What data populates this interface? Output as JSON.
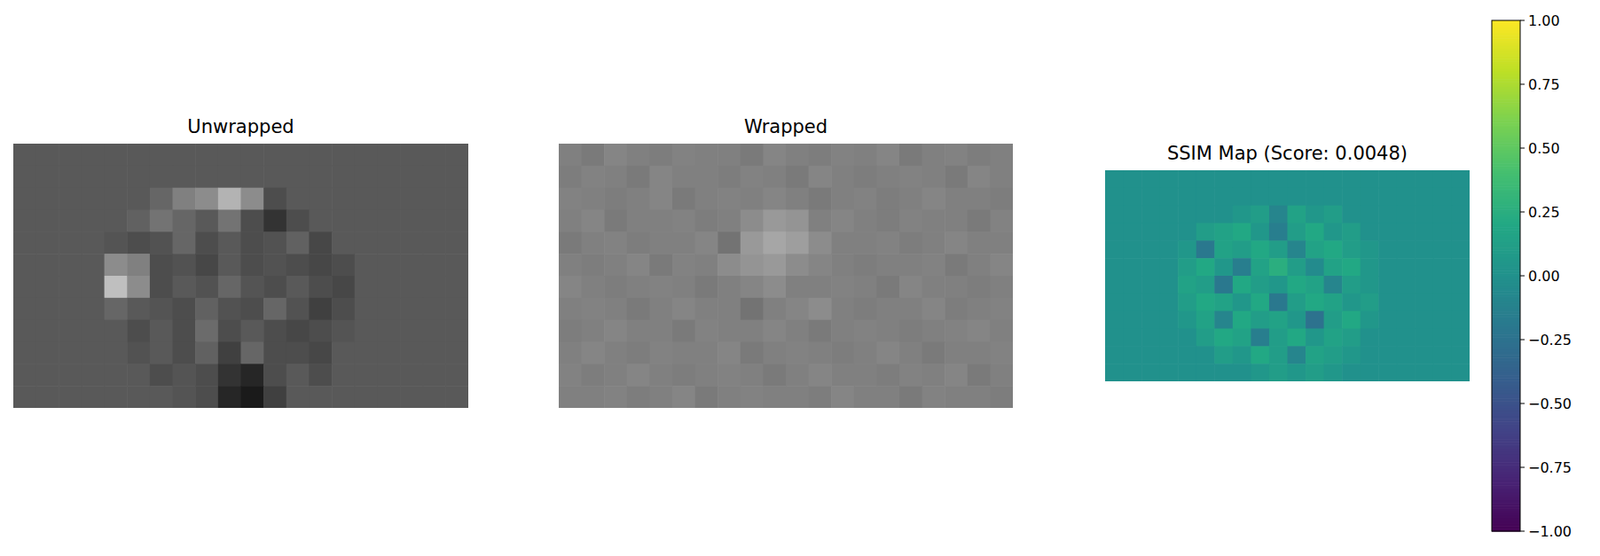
{
  "chart_data": [
    {
      "type": "heatmap",
      "title": "Unwrapped",
      "color": "gray",
      "tick_labels": false,
      "zlim": [
        0,
        1
      ],
      "cells": [
        [
          0.35,
          0.35,
          0.35,
          0.35,
          0.35,
          0.35,
          0.35,
          0.35,
          0.35,
          0.35,
          0.35,
          0.35,
          0.35,
          0.35,
          0.35,
          0.35,
          0.35,
          0.35,
          0.35,
          0.35
        ],
        [
          0.35,
          0.35,
          0.35,
          0.35,
          0.35,
          0.35,
          0.35,
          0.35,
          0.35,
          0.35,
          0.35,
          0.35,
          0.35,
          0.35,
          0.35,
          0.35,
          0.35,
          0.35,
          0.35,
          0.35
        ],
        [
          0.35,
          0.35,
          0.35,
          0.35,
          0.35,
          0.35,
          0.4,
          0.5,
          0.55,
          0.7,
          0.55,
          0.3,
          0.35,
          0.35,
          0.35,
          0.35,
          0.35,
          0.35,
          0.35,
          0.35
        ],
        [
          0.35,
          0.35,
          0.35,
          0.35,
          0.35,
          0.38,
          0.45,
          0.4,
          0.35,
          0.45,
          0.3,
          0.2,
          0.3,
          0.35,
          0.35,
          0.35,
          0.35,
          0.35,
          0.35,
          0.35
        ],
        [
          0.35,
          0.35,
          0.35,
          0.35,
          0.33,
          0.3,
          0.32,
          0.4,
          0.3,
          0.35,
          0.3,
          0.32,
          0.38,
          0.28,
          0.35,
          0.35,
          0.35,
          0.35,
          0.35,
          0.35
        ],
        [
          0.35,
          0.35,
          0.35,
          0.35,
          0.55,
          0.5,
          0.3,
          0.32,
          0.28,
          0.35,
          0.3,
          0.32,
          0.3,
          0.28,
          0.3,
          0.35,
          0.35,
          0.35,
          0.35,
          0.35
        ],
        [
          0.35,
          0.35,
          0.35,
          0.35,
          0.75,
          0.55,
          0.3,
          0.35,
          0.32,
          0.4,
          0.33,
          0.3,
          0.35,
          0.3,
          0.28,
          0.35,
          0.35,
          0.35,
          0.35,
          0.35
        ],
        [
          0.35,
          0.35,
          0.35,
          0.35,
          0.4,
          0.35,
          0.33,
          0.3,
          0.38,
          0.32,
          0.3,
          0.4,
          0.32,
          0.25,
          0.3,
          0.35,
          0.35,
          0.35,
          0.35,
          0.35
        ],
        [
          0.35,
          0.35,
          0.35,
          0.35,
          0.35,
          0.3,
          0.35,
          0.3,
          0.42,
          0.3,
          0.35,
          0.3,
          0.28,
          0.3,
          0.33,
          0.35,
          0.35,
          0.35,
          0.35,
          0.35
        ],
        [
          0.35,
          0.35,
          0.35,
          0.35,
          0.35,
          0.32,
          0.35,
          0.3,
          0.38,
          0.25,
          0.4,
          0.3,
          0.3,
          0.28,
          0.35,
          0.35,
          0.35,
          0.35,
          0.35,
          0.35
        ],
        [
          0.35,
          0.35,
          0.35,
          0.35,
          0.35,
          0.35,
          0.3,
          0.33,
          0.3,
          0.2,
          0.15,
          0.3,
          0.35,
          0.3,
          0.35,
          0.35,
          0.35,
          0.35,
          0.35,
          0.35
        ],
        [
          0.35,
          0.35,
          0.35,
          0.35,
          0.35,
          0.35,
          0.35,
          0.33,
          0.3,
          0.15,
          0.1,
          0.25,
          0.35,
          0.35,
          0.35,
          0.35,
          0.35,
          0.35,
          0.35,
          0.35
        ]
      ]
    },
    {
      "type": "heatmap",
      "title": "Wrapped",
      "color": "gray",
      "tick_labels": false,
      "zlim": [
        0,
        1
      ],
      "cells": [
        [
          0.5,
          0.48,
          0.52,
          0.5,
          0.49,
          0.51,
          0.5,
          0.5,
          0.48,
          0.52,
          0.5,
          0.49,
          0.51,
          0.5,
          0.52,
          0.48,
          0.5,
          0.51,
          0.49,
          0.5
        ],
        [
          0.49,
          0.51,
          0.5,
          0.48,
          0.52,
          0.5,
          0.5,
          0.49,
          0.51,
          0.5,
          0.48,
          0.52,
          0.5,
          0.49,
          0.5,
          0.51,
          0.5,
          0.48,
          0.52,
          0.5
        ],
        [
          0.51,
          0.5,
          0.49,
          0.5,
          0.52,
          0.48,
          0.5,
          0.51,
          0.5,
          0.52,
          0.5,
          0.48,
          0.5,
          0.51,
          0.49,
          0.5,
          0.52,
          0.5,
          0.5,
          0.49
        ],
        [
          0.5,
          0.52,
          0.48,
          0.5,
          0.5,
          0.51,
          0.49,
          0.5,
          0.55,
          0.6,
          0.58,
          0.5,
          0.52,
          0.5,
          0.49,
          0.51,
          0.5,
          0.5,
          0.48,
          0.51
        ],
        [
          0.48,
          0.5,
          0.51,
          0.49,
          0.5,
          0.5,
          0.52,
          0.45,
          0.6,
          0.65,
          0.62,
          0.55,
          0.5,
          0.5,
          0.51,
          0.49,
          0.5,
          0.52,
          0.5,
          0.5
        ],
        [
          0.5,
          0.49,
          0.5,
          0.52,
          0.48,
          0.51,
          0.5,
          0.55,
          0.58,
          0.6,
          0.55,
          0.52,
          0.5,
          0.49,
          0.5,
          0.5,
          0.51,
          0.48,
          0.5,
          0.52
        ],
        [
          0.52,
          0.5,
          0.49,
          0.5,
          0.51,
          0.5,
          0.48,
          0.5,
          0.52,
          0.55,
          0.5,
          0.5,
          0.51,
          0.5,
          0.48,
          0.52,
          0.5,
          0.5,
          0.49,
          0.5
        ],
        [
          0.5,
          0.51,
          0.5,
          0.48,
          0.5,
          0.52,
          0.5,
          0.5,
          0.45,
          0.5,
          0.52,
          0.55,
          0.5,
          0.49,
          0.5,
          0.5,
          0.52,
          0.49,
          0.5,
          0.51
        ],
        [
          0.49,
          0.5,
          0.52,
          0.5,
          0.5,
          0.48,
          0.51,
          0.5,
          0.5,
          0.52,
          0.5,
          0.48,
          0.5,
          0.51,
          0.5,
          0.49,
          0.5,
          0.51,
          0.52,
          0.5
        ],
        [
          0.5,
          0.52,
          0.5,
          0.49,
          0.51,
          0.5,
          0.5,
          0.52,
          0.48,
          0.5,
          0.51,
          0.5,
          0.49,
          0.5,
          0.52,
          0.5,
          0.48,
          0.5,
          0.5,
          0.51
        ],
        [
          0.51,
          0.49,
          0.5,
          0.52,
          0.5,
          0.49,
          0.5,
          0.51,
          0.5,
          0.48,
          0.5,
          0.52,
          0.5,
          0.5,
          0.49,
          0.51,
          0.5,
          0.52,
          0.48,
          0.5
        ],
        [
          0.5,
          0.5,
          0.51,
          0.49,
          0.5,
          0.52,
          0.48,
          0.5,
          0.51,
          0.5,
          0.5,
          0.49,
          0.52,
          0.5,
          0.5,
          0.48,
          0.51,
          0.5,
          0.5,
          0.49
        ]
      ]
    },
    {
      "type": "heatmap",
      "title": "SSIM Map (Score: 0.0048)",
      "color": "viridis",
      "tick_labels": false,
      "zlim": [
        -1,
        1
      ],
      "zticks": [
        {
          "value": -1,
          "label": "−1.00"
        },
        {
          "value": -0.75,
          "label": "−0.75"
        },
        {
          "value": -0.5,
          "label": "−0.50"
        },
        {
          "value": -0.25,
          "label": "−0.25"
        },
        {
          "value": 0,
          "label": "0.00"
        },
        {
          "value": 0.25,
          "label": "0.25"
        },
        {
          "value": 0.5,
          "label": "0.50"
        },
        {
          "value": 0.75,
          "label": "0.75"
        },
        {
          "value": 1,
          "label": "1.00"
        }
      ],
      "cells": [
        [
          0,
          0,
          0,
          0,
          0,
          0,
          0,
          0,
          0,
          0,
          0,
          0,
          0,
          0,
          0,
          0,
          0,
          0,
          0,
          0
        ],
        [
          0,
          0,
          0,
          0,
          0,
          0,
          0,
          0,
          0,
          0,
          0,
          0,
          0,
          0,
          0,
          0,
          0,
          0,
          0,
          0
        ],
        [
          0,
          0,
          0,
          0,
          0,
          0,
          0,
          0.05,
          0.1,
          -0.1,
          0.15,
          0.05,
          0.1,
          0,
          0,
          0,
          0,
          0,
          0,
          0
        ],
        [
          0,
          0,
          0,
          0,
          0,
          0.1,
          0.15,
          0.2,
          0.05,
          -0.15,
          0.1,
          0.2,
          0.05,
          0.1,
          0,
          0,
          0,
          0,
          0,
          0
        ],
        [
          0,
          0,
          0,
          0,
          0.05,
          -0.2,
          0.15,
          0.1,
          0.2,
          0.1,
          -0.1,
          0.15,
          0.2,
          0.1,
          0.05,
          0,
          0,
          0,
          0,
          0
        ],
        [
          0,
          0,
          0,
          0,
          0.1,
          0.2,
          0.05,
          -0.15,
          0.15,
          0.25,
          0.1,
          -0.05,
          0.15,
          0.2,
          0.05,
          0,
          0,
          0,
          0,
          0
        ],
        [
          0,
          0,
          0,
          0,
          0.15,
          0.1,
          -0.2,
          0.2,
          0.1,
          0.05,
          0.2,
          0.15,
          -0.1,
          0.1,
          0.05,
          0,
          0,
          0,
          0,
          0
        ],
        [
          0,
          0,
          0,
          0,
          0.1,
          0.2,
          0.15,
          0.05,
          0.2,
          -0.2,
          0.1,
          0.2,
          0.15,
          0.05,
          0.1,
          0,
          0,
          0,
          0,
          0
        ],
        [
          0,
          0,
          0,
          0,
          0.05,
          0.15,
          -0.1,
          0.2,
          0.1,
          0.15,
          0.05,
          -0.25,
          0.1,
          0.2,
          0.05,
          0,
          0,
          0,
          0,
          0
        ],
        [
          0,
          0,
          0,
          0,
          0,
          0.1,
          0.2,
          0.15,
          -0.15,
          0.1,
          0.2,
          0.05,
          0.15,
          0.1,
          0,
          0,
          0,
          0,
          0,
          0
        ],
        [
          0,
          0,
          0,
          0,
          0,
          0,
          0.1,
          0.05,
          0.2,
          0.1,
          -0.1,
          0.15,
          0.1,
          0.05,
          0,
          0,
          0,
          0,
          0,
          0
        ],
        [
          0,
          0,
          0,
          0,
          0,
          0,
          0,
          0,
          0.05,
          0.1,
          0.05,
          0.1,
          0.05,
          0,
          0,
          0,
          0,
          0,
          0,
          0
        ]
      ]
    }
  ]
}
